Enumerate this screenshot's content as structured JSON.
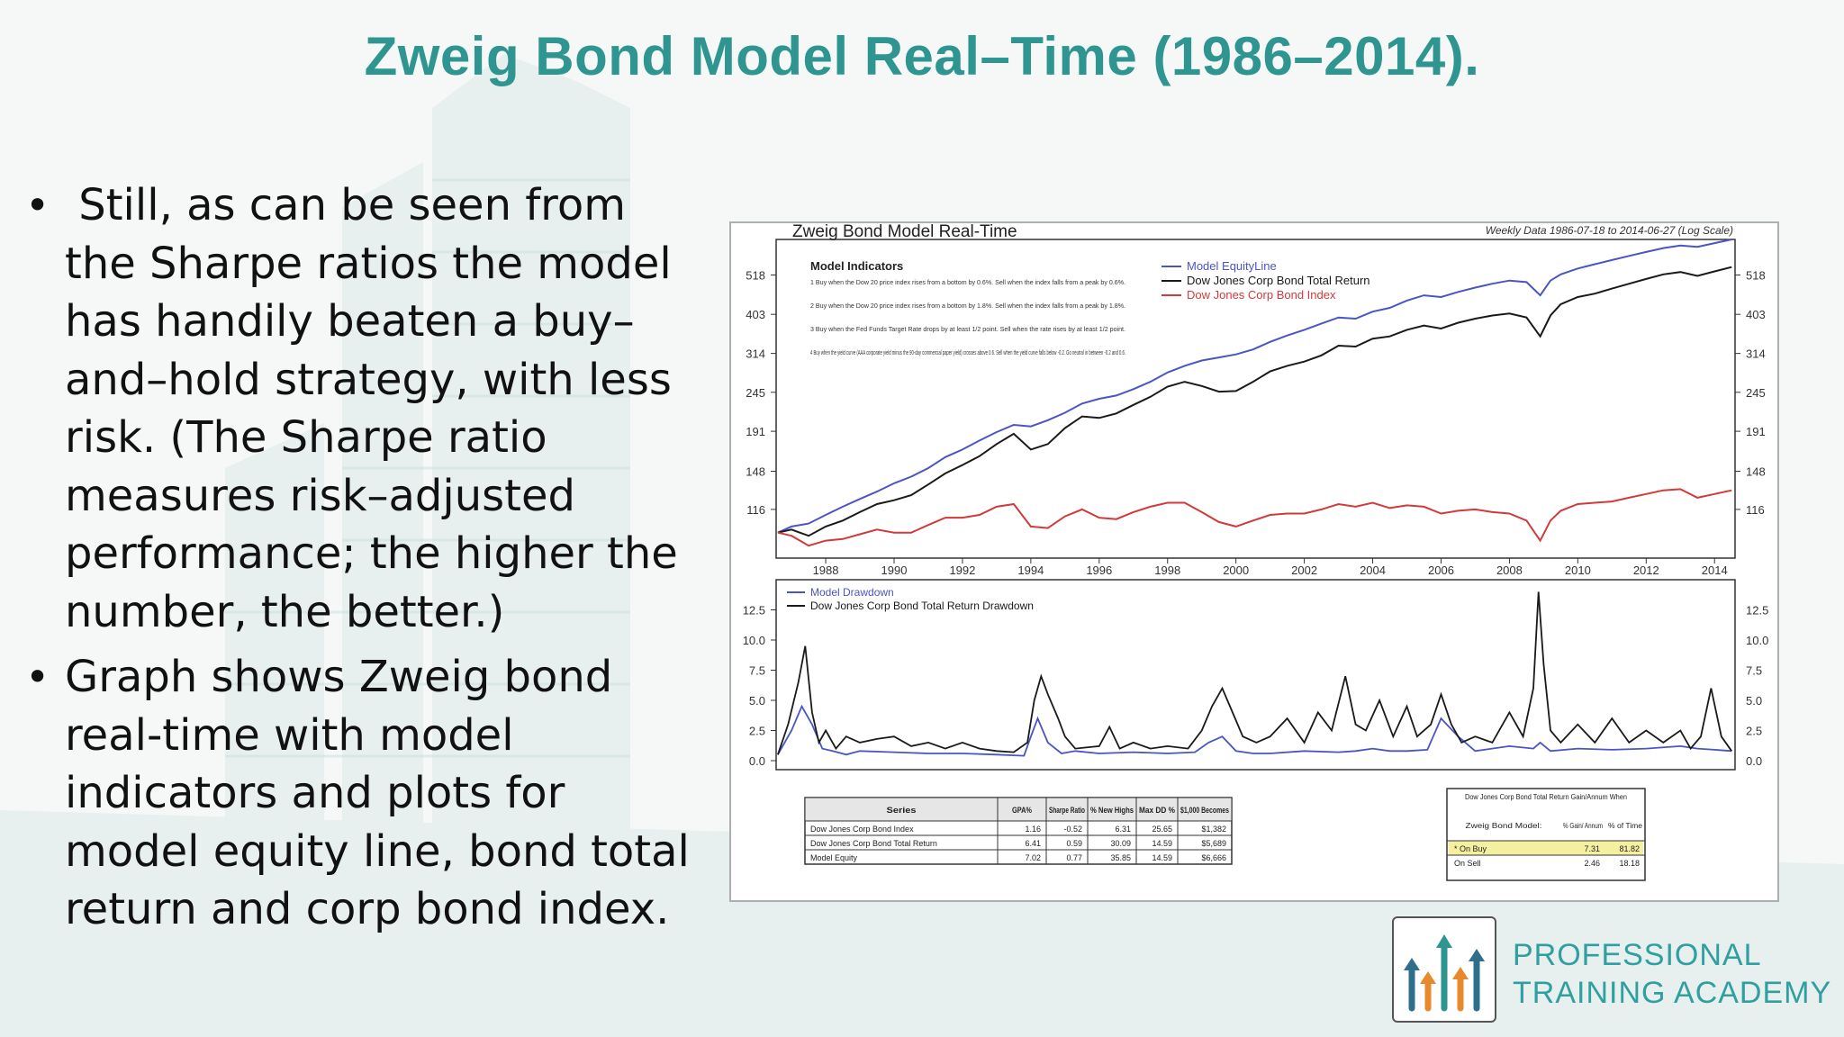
{
  "slide": {
    "title": "Zweig Bond Model Real–Time (1986–2014).",
    "bullets": [
      " Still, as can be seen from the Sharpe ratios the model has handily beaten a buy–and–hold strategy, with less risk. (The Sharpe ratio measures risk–adjusted performance; the higher the number, the better.)",
      "Graph shows Zweig bond real-time with model indicators and plots for model equity line, bond total return and corp bond index."
    ],
    "bullet_symbol": "•"
  },
  "brand": {
    "line1": "PROFESSIONAL",
    "line2": "TRAINING ACADEMY",
    "color": "#2f9f9f"
  },
  "colors": {
    "title": "#2e9590",
    "model_line": "#4a55c4",
    "bond_tr_line": "#1a1a1a",
    "bond_index_line": "#d23a3a",
    "highlight_row": "#f5f0a0"
  },
  "chart_data": [
    {
      "type": "line",
      "title": "Zweig Bond Model Real-Time",
      "subtitle": "Weekly Data 1986-07-18 to 2014-06-27 (Log Scale)",
      "scale": "log",
      "ylim": [
        85,
        650
      ],
      "yticks": [
        116,
        148,
        191,
        245,
        314,
        403,
        518
      ],
      "xlim": [
        1986.55,
        2014.6
      ],
      "xticks": [
        1988,
        1990,
        1992,
        1994,
        1996,
        1998,
        2000,
        2002,
        2004,
        2006,
        2008,
        2010,
        2012,
        2014
      ],
      "legend": "top-center",
      "indicators_heading": "Model Indicators",
      "indicators": [
        "1  Buy when the Dow 20 price index rises from a bottom by 0.6%. Sell when the index falls from a peak by 0.6%.",
        "2  Buy when the Dow 20 price index rises from a bottom by 1.8%. Sell when the index falls from a peak by 1.8%.",
        "3  Buy when the Fed Funds Target Rate drops by at least 1/2 point. Sell when the rate rises by at least 1/2 point.",
        "4  Buy when the yield curve (AAA corporate yield minus the 90-day commercial paper yield) crosses above 0.6. Sell when the yield curve falls below -0.2. Go neutral in between -0.2 and 0.6."
      ],
      "series": [
        {
          "name": "Model EquityLine",
          "x": [
            1986.6,
            1987.0,
            1987.5,
            1988.0,
            1988.5,
            1989.0,
            1989.5,
            1990.0,
            1990.5,
            1991.0,
            1991.5,
            1992.0,
            1992.5,
            1993.0,
            1993.5,
            1994.0,
            1994.5,
            1995.0,
            1995.5,
            1996.0,
            1996.5,
            1997.0,
            1997.5,
            1998.0,
            1998.5,
            1999.0,
            1999.5,
            2000.0,
            2000.5,
            2001.0,
            2001.5,
            2002.0,
            2002.5,
            2003.0,
            2003.5,
            2004.0,
            2004.5,
            2005.0,
            2005.5,
            2006.0,
            2006.5,
            2007.0,
            2007.5,
            2008.0,
            2008.5,
            2008.9,
            2009.2,
            2009.5,
            2010.0,
            2010.5,
            2011.0,
            2011.5,
            2012.0,
            2012.5,
            2013.0,
            2013.5,
            2014.0,
            2014.5
          ],
          "values": [
            100,
            104,
            106,
            112,
            118,
            124,
            130,
            137,
            143,
            151,
            162,
            170,
            180,
            190,
            199,
            197,
            205,
            215,
            228,
            235,
            240,
            250,
            262,
            278,
            290,
            300,
            306,
            312,
            322,
            338,
            352,
            365,
            380,
            395,
            392,
            410,
            420,
            440,
            455,
            450,
            465,
            478,
            490,
            500,
            495,
            455,
            500,
            520,
            540,
            555,
            570,
            585,
            600,
            615,
            625,
            620,
            635,
            650
          ]
        },
        {
          "name": "Dow Jones Corp Bond Total Return",
          "x": [
            1986.6,
            1987.0,
            1987.5,
            1988.0,
            1988.5,
            1989.0,
            1989.5,
            1990.0,
            1990.5,
            1991.0,
            1991.5,
            1992.0,
            1992.5,
            1993.0,
            1993.5,
            1994.0,
            1994.5,
            1995.0,
            1995.5,
            1996.0,
            1996.5,
            1997.0,
            1997.5,
            1998.0,
            1998.5,
            1999.0,
            1999.5,
            2000.0,
            2000.5,
            2001.0,
            2001.5,
            2002.0,
            2002.5,
            2003.0,
            2003.5,
            2004.0,
            2004.5,
            2005.0,
            2005.5,
            2006.0,
            2006.5,
            2007.0,
            2007.5,
            2008.0,
            2008.5,
            2008.9,
            2009.2,
            2009.5,
            2010.0,
            2010.5,
            2011.0,
            2011.5,
            2012.0,
            2012.5,
            2013.0,
            2013.5,
            2014.0,
            2014.5
          ],
          "values": [
            100,
            102,
            98,
            104,
            108,
            114,
            120,
            123,
            127,
            136,
            146,
            154,
            163,
            176,
            188,
            170,
            176,
            195,
            210,
            208,
            214,
            226,
            238,
            254,
            262,
            255,
            246,
            247,
            262,
            280,
            290,
            298,
            310,
            330,
            328,
            345,
            350,
            365,
            375,
            368,
            382,
            392,
            400,
            405,
            395,
            350,
            400,
            430,
            450,
            460,
            475,
            490,
            505,
            520,
            528,
            515,
            530,
            545
          ]
        },
        {
          "name": "Dow Jones Corp Bond Index",
          "x": [
            1986.6,
            1987.0,
            1987.5,
            1988.0,
            1988.5,
            1989.0,
            1989.5,
            1990.0,
            1990.5,
            1991.0,
            1991.5,
            1992.0,
            1992.5,
            1993.0,
            1993.5,
            1994.0,
            1994.5,
            1995.0,
            1995.5,
            1996.0,
            1996.5,
            1997.0,
            1997.5,
            1998.0,
            1998.5,
            1999.0,
            1999.5,
            2000.0,
            2000.5,
            2001.0,
            2001.5,
            2002.0,
            2002.5,
            2003.0,
            2003.5,
            2004.0,
            2004.5,
            2005.0,
            2005.5,
            2006.0,
            2006.5,
            2007.0,
            2007.5,
            2008.0,
            2008.5,
            2008.9,
            2009.2,
            2009.5,
            2010.0,
            2010.5,
            2011.0,
            2011.5,
            2012.0,
            2012.5,
            2013.0,
            2013.5,
            2014.0,
            2014.5
          ],
          "values": [
            100,
            98,
            92,
            95,
            96,
            99,
            102,
            100,
            100,
            105,
            110,
            110,
            112,
            118,
            120,
            104,
            103,
            111,
            116,
            110,
            109,
            114,
            118,
            121,
            121,
            114,
            107,
            104,
            108,
            112,
            113,
            113,
            116,
            120,
            118,
            121,
            117,
            119,
            118,
            113,
            115,
            116,
            114,
            113,
            108,
            95,
            108,
            115,
            120,
            121,
            122,
            125,
            128,
            131,
            132,
            125,
            128,
            131
          ]
        }
      ]
    },
    {
      "type": "line",
      "ylim": [
        0,
        15
      ],
      "yticks": [
        0.0,
        2.5,
        5.0,
        7.5,
        10.0,
        12.5
      ],
      "xlim": [
        1986.55,
        2014.6
      ],
      "legend": "top-left",
      "series": [
        {
          "name": "Model Drawdown",
          "x": [
            1986.6,
            1987.0,
            1987.3,
            1987.6,
            1987.9,
            1988.2,
            1988.6,
            1989.0,
            1990.0,
            1991.0,
            1992.0,
            1993.0,
            1993.8,
            1994.0,
            1994.2,
            1994.5,
            1994.9,
            1995.3,
            1996.0,
            1997.0,
            1998.0,
            1998.8,
            1999.2,
            1999.6,
            2000.0,
            2000.5,
            2001.0,
            2002.0,
            2003.0,
            2003.5,
            2004.0,
            2004.5,
            2005.0,
            2005.6,
            2006.0,
            2006.5,
            2007.0,
            2008.0,
            2008.7,
            2008.9,
            2009.2,
            2010.0,
            2011.0,
            2012.0,
            2013.0,
            2013.5,
            2014.0,
            2014.5
          ],
          "values": [
            0.5,
            2.5,
            4.5,
            3.0,
            1.0,
            0.8,
            0.5,
            0.8,
            0.7,
            0.6,
            0.6,
            0.5,
            0.4,
            2.0,
            3.5,
            1.5,
            0.6,
            0.8,
            0.6,
            0.7,
            0.6,
            0.7,
            1.5,
            2.0,
            0.8,
            0.6,
            0.6,
            0.8,
            0.7,
            0.8,
            1.0,
            0.8,
            0.8,
            0.9,
            3.5,
            2.0,
            0.8,
            1.2,
            1.0,
            1.5,
            0.8,
            1.0,
            0.9,
            1.0,
            1.2,
            1.0,
            0.9,
            0.8
          ]
        },
        {
          "name": "Dow Jones Corp Bond Total Return Drawdown",
          "x": [
            1986.6,
            1986.9,
            1987.2,
            1987.4,
            1987.6,
            1987.8,
            1988.0,
            1988.3,
            1988.6,
            1989.0,
            1989.5,
            1990.0,
            1990.5,
            1991.0,
            1991.5,
            1992.0,
            1992.5,
            1993.0,
            1993.5,
            1993.9,
            1994.1,
            1994.3,
            1994.5,
            1994.8,
            1995.0,
            1995.3,
            1996.0,
            1996.3,
            1996.6,
            1997.0,
            1997.5,
            1998.0,
            1998.6,
            1999.0,
            1999.3,
            1999.6,
            1999.9,
            2000.2,
            2000.6,
            2001.0,
            2001.5,
            2002.0,
            2002.4,
            2002.8,
            2003.2,
            2003.5,
            2003.8,
            2004.2,
            2004.6,
            2005.0,
            2005.3,
            2005.7,
            2006.0,
            2006.3,
            2006.6,
            2007.0,
            2007.5,
            2008.0,
            2008.4,
            2008.7,
            2008.85,
            2009.0,
            2009.2,
            2009.5,
            2010.0,
            2010.5,
            2011.0,
            2011.5,
            2012.0,
            2012.5,
            2013.0,
            2013.3,
            2013.6,
            2013.9,
            2014.2,
            2014.5
          ],
          "values": [
            0.5,
            3.0,
            6.5,
            9.5,
            4.0,
            1.5,
            2.5,
            1.0,
            2.0,
            1.5,
            1.8,
            2.0,
            1.2,
            1.5,
            1.0,
            1.5,
            1.0,
            0.8,
            0.7,
            1.5,
            5.0,
            7.0,
            5.5,
            3.5,
            2.0,
            1.0,
            1.2,
            2.8,
            1.0,
            1.5,
            1.0,
            1.2,
            1.0,
            2.5,
            4.5,
            6.0,
            4.0,
            2.0,
            1.5,
            2.0,
            3.5,
            1.5,
            4.0,
            2.5,
            7.0,
            3.0,
            2.5,
            5.0,
            2.0,
            4.5,
            2.0,
            3.0,
            5.5,
            3.0,
            1.5,
            2.0,
            1.5,
            4.0,
            2.0,
            6.0,
            14.0,
            8.0,
            2.5,
            1.5,
            3.0,
            1.5,
            3.5,
            1.5,
            2.5,
            1.5,
            2.5,
            1.0,
            2.0,
            6.0,
            2.0,
            0.8
          ]
        }
      ]
    },
    {
      "type": "table",
      "columns": [
        "Series",
        "GPA%",
        "Sharpe Ratio",
        "% New Highs",
        "Max DD %",
        "$1,000 Becomes"
      ],
      "rows": [
        [
          "Dow Jones Corp Bond Index",
          "1.16",
          "-0.52",
          "6.31",
          "25.65",
          "$1,382"
        ],
        [
          "Dow Jones Corp Bond Total Return",
          "6.41",
          "0.59",
          "30.09",
          "14.59",
          "$5,689"
        ],
        [
          "Model Equity",
          "7.02",
          "0.77",
          "35.85",
          "14.59",
          "$6,666"
        ]
      ]
    },
    {
      "type": "table",
      "title": "Dow Jones Corp Bond Total Return Gain/Annum When",
      "columns": [
        "Zweig Bond Model:",
        "% Gain/ Annum",
        "% of Time"
      ],
      "rows": [
        [
          "* On Buy",
          "7.31",
          "81.82"
        ],
        [
          "On Sell",
          "2.46",
          "18.18"
        ]
      ]
    }
  ]
}
